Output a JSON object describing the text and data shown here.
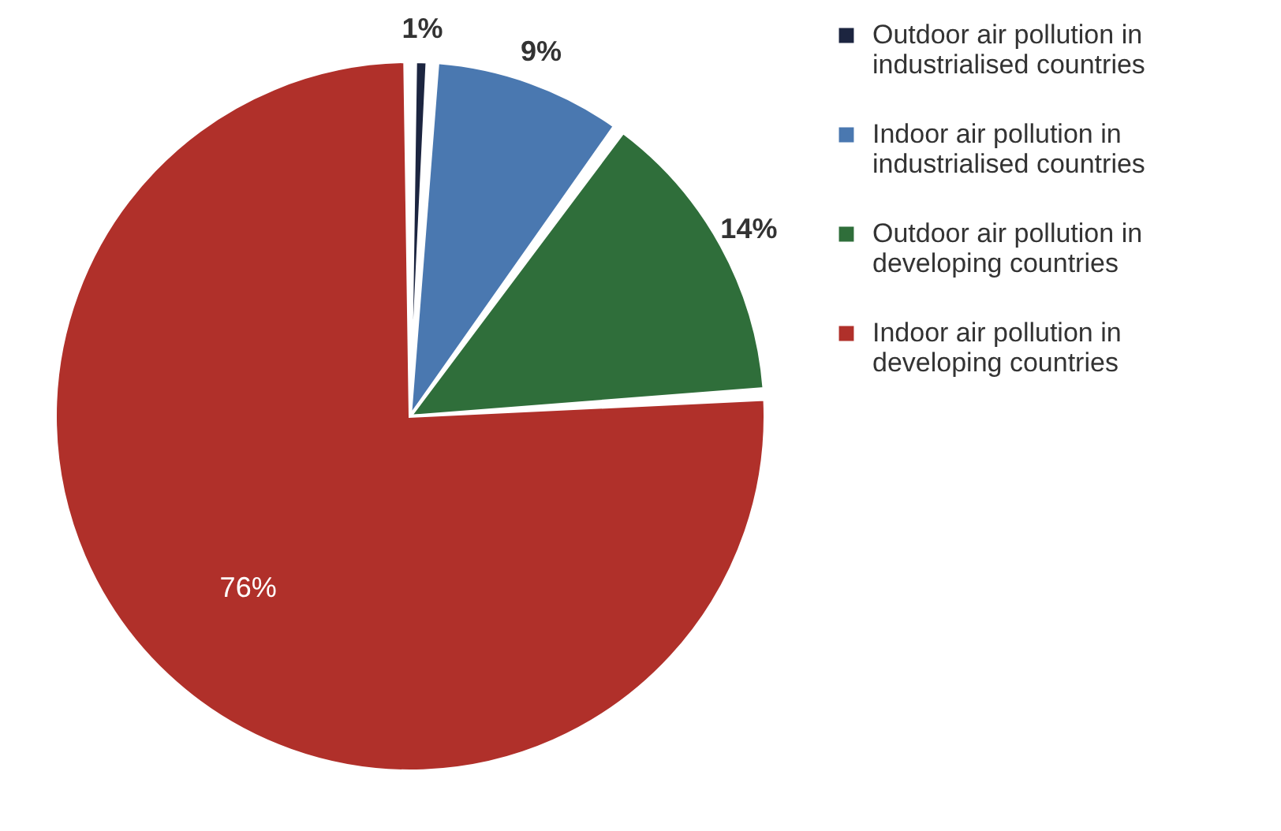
{
  "chart_data": {
    "type": "pie",
    "categories": [
      "Outdoor air pollution in industrialised countries",
      "Indoor air pollution in industrialised countries",
      "Outdoor air pollution in developing countries",
      "Indoor air pollution in developing countries"
    ],
    "values": [
      1,
      9,
      14,
      76
    ],
    "value_labels": [
      "1%",
      "9%",
      "14%",
      "76%"
    ],
    "colors": [
      "#1c2540",
      "#4a78b0",
      "#2f6e3a",
      "#b0302a"
    ],
    "legend": "right"
  }
}
